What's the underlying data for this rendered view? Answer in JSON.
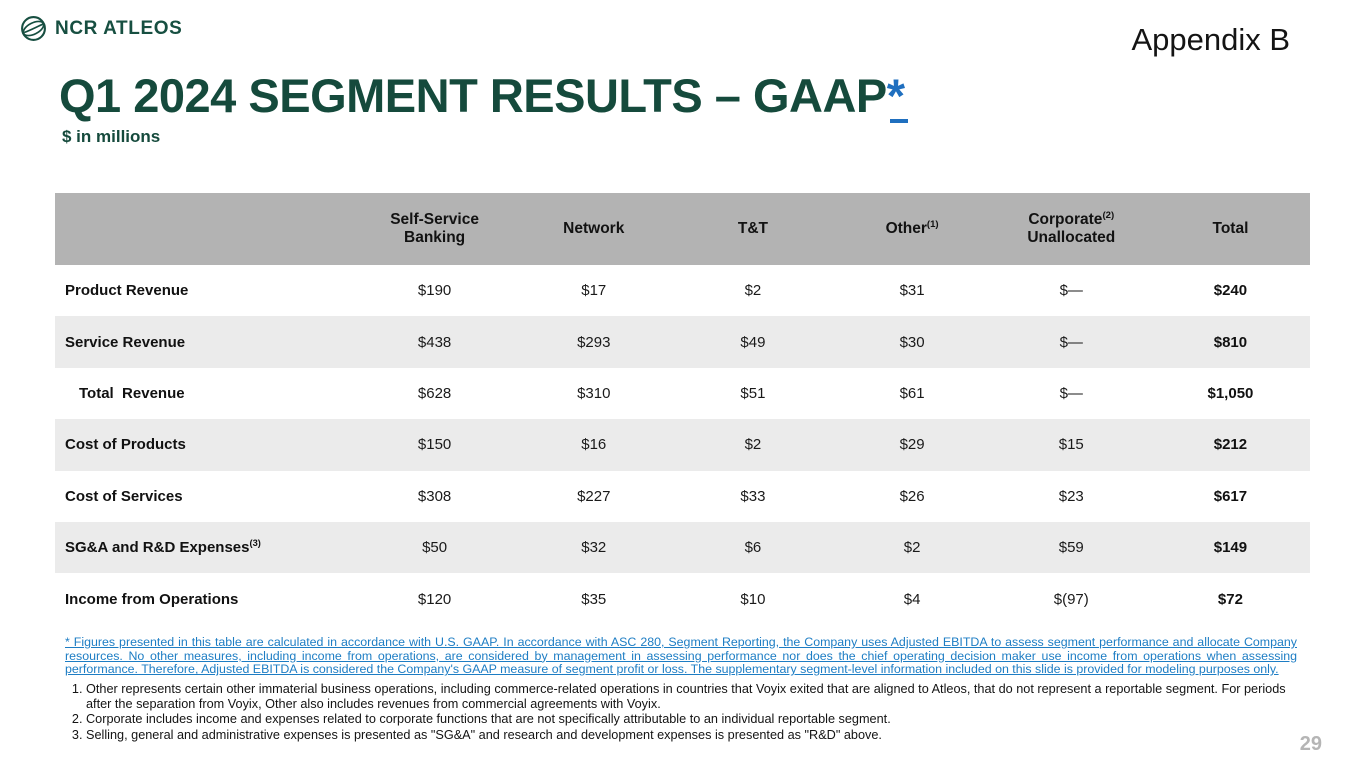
{
  "slide": {
    "logo_text": "NCR ATLEOS",
    "appendix_label": "Appendix B",
    "title": "Q1 2024 SEGMENT RESULTS – GAAP",
    "title_asterisk": "*",
    "subtitle": "$ in millions",
    "page_number": "29"
  },
  "colors": {
    "brand_green": "#154a3c",
    "link_blue": "#1d7dc4",
    "asterisk_blue": "#1f6fbf",
    "header_gray": "#b3b3b3",
    "row_alt_gray": "#ebebeb",
    "page_number_gray": "#b5b5b5"
  },
  "table": {
    "columns": [
      {
        "line1": "Self-Service",
        "line2": "Banking",
        "sup": ""
      },
      {
        "line1": "Network",
        "line2": "",
        "sup": ""
      },
      {
        "line1": "T&T",
        "line2": "",
        "sup": ""
      },
      {
        "line1": "Other",
        "line2": "",
        "sup": "(1)"
      },
      {
        "line1": "Corporate",
        "line2": "Unallocated",
        "sup": "(2)"
      },
      {
        "line1": "Total",
        "line2": "",
        "sup": ""
      }
    ],
    "rows": [
      {
        "label": "Product Revenue",
        "sup": "",
        "indent": false,
        "values": [
          "$190",
          "$17",
          "$2",
          "$31",
          "$—",
          "$240"
        ]
      },
      {
        "label": "Service Revenue",
        "sup": "",
        "indent": false,
        "values": [
          "$438",
          "$293",
          "$49",
          "$30",
          "$—",
          "$810"
        ]
      },
      {
        "label": "Total  Revenue",
        "sup": "",
        "indent": true,
        "values": [
          "$628",
          "$310",
          "$51",
          "$61",
          "$—",
          "$1,050"
        ]
      },
      {
        "label": "Cost of Products",
        "sup": "",
        "indent": false,
        "values": [
          "$150",
          "$16",
          "$2",
          "$29",
          "$15",
          "$212"
        ]
      },
      {
        "label": "Cost of Services",
        "sup": "",
        "indent": false,
        "values": [
          "$308",
          "$227",
          "$33",
          "$26",
          "$23",
          "$617"
        ]
      },
      {
        "label": "SG&A and R&D Expenses",
        "sup": "(3)",
        "indent": false,
        "values": [
          "$50",
          "$32",
          "$6",
          "$2",
          "$59",
          "$149"
        ]
      },
      {
        "label": "Income from Operations",
        "sup": "",
        "indent": false,
        "values": [
          "$120",
          "$35",
          "$10",
          "$4",
          "$(97)",
          "$72"
        ]
      }
    ]
  },
  "footnotes": {
    "gaap_note": "* Figures presented in this table are calculated in accordance with U.S. GAAP. In accordance with ASC 280, Segment Reporting, the Company uses Adjusted EBITDA to assess segment performance and allocate Company resources. No other measures, including income from operations, are considered by management in assessing performance nor does the chief operating decision maker use income from operations when assessing performance. Therefore, Adjusted EBITDA is considered the Company's GAAP measure of segment profit or loss.  The supplementary segment-level information included on this slide is provided for modeling purposes only.",
    "items": [
      "Other represents certain other immaterial business operations, including commerce-related operations in countries that Voyix exited that are aligned to Atleos, that do not represent a reportable segment. For periods after the separation from Voyix, Other also includes revenues from commercial agreements with Voyix.",
      "Corporate includes income and expenses related to corporate functions that are not specifically attributable to an individual reportable segment.",
      "Selling, general and administrative expenses is presented as \"SG&A\" and research and development expenses is presented as \"R&D\" above."
    ]
  }
}
